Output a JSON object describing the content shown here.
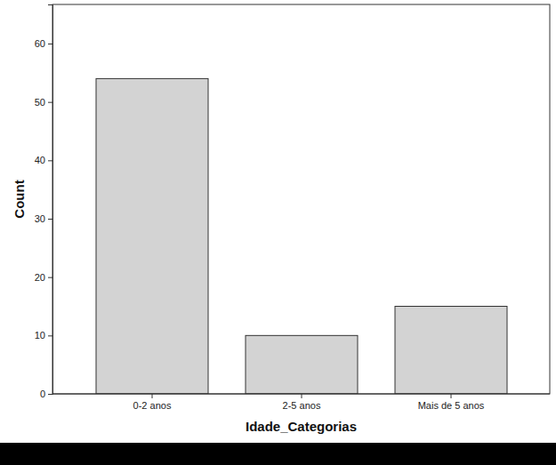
{
  "chart_data": {
    "type": "bar",
    "x_label": "Idade_Categorias",
    "y_label": "Count",
    "categories": [
      "0-2 anos",
      "2-5 anos",
      "Mais de 5 anos"
    ],
    "values": [
      54,
      10,
      15
    ],
    "color": "#d3d3d3",
    "ylim": [
      0,
      66.7
    ],
    "yticks": [
      0,
      10,
      20,
      30,
      40,
      50,
      60
    ],
    "grid": false
  }
}
